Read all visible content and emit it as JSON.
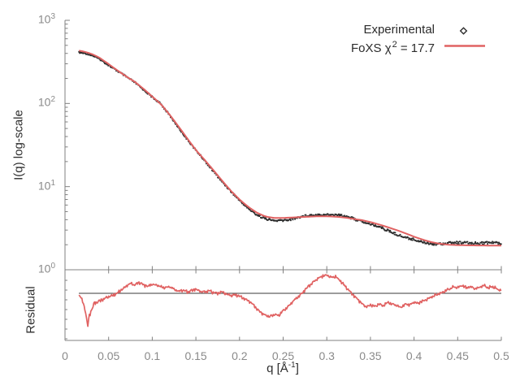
{
  "colors": {
    "experimental": "#2d2d2d",
    "model": "#e06262",
    "axis": "#808080",
    "tick_label": "#8a8a8a",
    "text": "#2e2e2e",
    "residual_ref_line": "#3a3a3a",
    "background": "#ffffff"
  },
  "legend": {
    "entries": [
      {
        "label": "Experimental",
        "marker": "point"
      },
      {
        "label_prefix": "FoXS χ",
        "label_sup": "2",
        "label_suffix": " = 17.7",
        "marker": "line"
      }
    ]
  },
  "chart_data": [
    {
      "type": "scatter",
      "title": "",
      "xlabel_prefix": "q [Å",
      "xlabel_sup": "-1",
      "xlabel_suffix": "]",
      "ylabel": "I(q) log-scale",
      "yscale": "log",
      "xlim": [
        0,
        0.5
      ],
      "ylim": [
        1,
        1000
      ],
      "grid": false,
      "legend_position": "top-right",
      "xtick_values": [
        0,
        0.05,
        0.1,
        0.15,
        0.2,
        0.25,
        0.3,
        0.35,
        0.4,
        0.45,
        0.5
      ],
      "xtick_labels": [
        "0",
        "0.05",
        "0.1",
        "0.15",
        "0.2",
        "0.25",
        "0.3",
        "0.35",
        "0.4",
        "0.45",
        "0.5"
      ],
      "ytick_values": [
        1,
        10,
        100,
        1000
      ],
      "ytick_labels": [
        {
          "base": "10",
          "exp": "0"
        },
        {
          "base": "10",
          "exp": "1"
        },
        {
          "base": "10",
          "exp": "2"
        },
        {
          "base": "10",
          "exp": "3"
        }
      ],
      "series": [
        {
          "name": "Experimental",
          "type": "scatter",
          "color": "#2d2d2d",
          "q": [
            0.017,
            0.02,
            0.025,
            0.03,
            0.035,
            0.04,
            0.045,
            0.05,
            0.06,
            0.07,
            0.08,
            0.09,
            0.1,
            0.11,
            0.12,
            0.13,
            0.14,
            0.15,
            0.16,
            0.17,
            0.18,
            0.19,
            0.2,
            0.21,
            0.22,
            0.23,
            0.24,
            0.25,
            0.26,
            0.27,
            0.28,
            0.29,
            0.3,
            0.31,
            0.32,
            0.33,
            0.34,
            0.35,
            0.36,
            0.37,
            0.38,
            0.39,
            0.4,
            0.41,
            0.42,
            0.43,
            0.44,
            0.45,
            0.46,
            0.47,
            0.48,
            0.49,
            0.5
          ],
          "I": [
            408,
            400,
            392,
            380,
            362,
            342,
            316,
            291,
            244,
            208,
            180,
            148,
            119,
            97,
            72,
            52,
            37,
            27,
            20.5,
            15.5,
            11.5,
            8.7,
            6.8,
            5.5,
            4.6,
            4.05,
            3.85,
            3.95,
            4.1,
            4.3,
            4.5,
            4.62,
            4.65,
            4.55,
            4.4,
            4.15,
            3.85,
            3.55,
            3.25,
            2.95,
            2.7,
            2.45,
            2.28,
            2.15,
            2.08,
            2.06,
            2.08,
            2.1,
            2.12,
            2.1,
            2.08,
            2.1,
            2.1
          ]
        },
        {
          "name": "FoXS χ² = 17.7",
          "type": "line",
          "color": "#e06262",
          "q": [
            0.017,
            0.02,
            0.025,
            0.03,
            0.035,
            0.04,
            0.045,
            0.05,
            0.06,
            0.07,
            0.08,
            0.09,
            0.1,
            0.11,
            0.12,
            0.13,
            0.14,
            0.15,
            0.16,
            0.17,
            0.18,
            0.19,
            0.2,
            0.21,
            0.22,
            0.23,
            0.24,
            0.25,
            0.26,
            0.27,
            0.28,
            0.29,
            0.3,
            0.31,
            0.32,
            0.33,
            0.34,
            0.35,
            0.36,
            0.37,
            0.38,
            0.39,
            0.4,
            0.41,
            0.42,
            0.43,
            0.44,
            0.45,
            0.46,
            0.47,
            0.48,
            0.49,
            0.5
          ],
          "I": [
            432,
            424,
            412,
            396,
            376,
            352,
            324,
            298,
            250,
            212,
            182,
            150,
            121,
            98,
            73,
            53,
            38,
            27.5,
            21,
            15.8,
            11.8,
            8.9,
            7.0,
            5.7,
            4.85,
            4.35,
            4.2,
            4.2,
            4.25,
            4.3,
            4.35,
            4.4,
            4.4,
            4.35,
            4.25,
            4.1,
            3.95,
            3.75,
            3.5,
            3.25,
            3.0,
            2.75,
            2.5,
            2.3,
            2.15,
            2.05,
            2.0,
            1.98,
            1.97,
            1.96,
            1.96,
            1.95,
            1.95
          ]
        }
      ]
    },
    {
      "type": "line",
      "title": "",
      "ylabel": "Residual",
      "yscale": "log",
      "xlim": [
        0,
        0.5
      ],
      "ref_value": 1,
      "grid": false,
      "series": [
        {
          "name": "Residual",
          "type": "line",
          "color": "#e06262",
          "q": [
            0.017,
            0.02,
            0.023,
            0.026,
            0.028,
            0.031,
            0.034,
            0.04,
            0.045,
            0.05,
            0.055,
            0.06,
            0.065,
            0.07,
            0.075,
            0.08,
            0.085,
            0.09,
            0.095,
            0.1,
            0.105,
            0.11,
            0.115,
            0.12,
            0.125,
            0.13,
            0.135,
            0.14,
            0.145,
            0.15,
            0.155,
            0.16,
            0.165,
            0.17,
            0.175,
            0.18,
            0.185,
            0.19,
            0.195,
            0.2,
            0.205,
            0.21,
            0.215,
            0.22,
            0.225,
            0.23,
            0.235,
            0.24,
            0.245,
            0.25,
            0.255,
            0.26,
            0.265,
            0.27,
            0.275,
            0.28,
            0.285,
            0.29,
            0.295,
            0.3,
            0.305,
            0.31,
            0.315,
            0.32,
            0.325,
            0.33,
            0.335,
            0.34,
            0.345,
            0.35,
            0.355,
            0.36,
            0.365,
            0.37,
            0.375,
            0.38,
            0.385,
            0.39,
            0.395,
            0.4,
            0.405,
            0.41,
            0.415,
            0.42,
            0.425,
            0.43,
            0.435,
            0.44,
            0.445,
            0.45,
            0.455,
            0.46,
            0.465,
            0.47,
            0.475,
            0.48,
            0.485,
            0.49,
            0.495,
            0.5
          ],
          "value": [
            0.97,
            0.9,
            0.8,
            0.62,
            0.74,
            0.8,
            0.87,
            0.9,
            0.93,
            0.95,
            0.97,
            1.0,
            1.05,
            1.1,
            1.15,
            1.12,
            1.17,
            1.13,
            1.1,
            1.14,
            1.12,
            1.1,
            1.08,
            1.1,
            1.06,
            1.03,
            1.05,
            1.02,
            1.04,
            1.06,
            1.03,
            1.02,
            1.04,
            1.01,
            1.0,
            1.02,
            0.99,
            0.97,
            0.98,
            0.96,
            0.93,
            0.9,
            0.86,
            0.8,
            0.76,
            0.73,
            0.72,
            0.74,
            0.73,
            0.78,
            0.82,
            0.88,
            0.93,
            0.98,
            1.05,
            1.12,
            1.18,
            1.24,
            1.28,
            1.3,
            1.25,
            1.27,
            1.2,
            1.12,
            1.05,
            0.98,
            0.92,
            0.87,
            0.82,
            0.85,
            0.83,
            0.86,
            0.84,
            0.88,
            0.86,
            0.84,
            0.82,
            0.86,
            0.85,
            0.88,
            0.87,
            0.9,
            0.92,
            0.95,
            0.98,
            1.0,
            1.03,
            1.06,
            1.1,
            1.08,
            1.12,
            1.08,
            1.1,
            1.06,
            1.09,
            1.12,
            1.08,
            1.1,
            1.06,
            1.04
          ]
        }
      ]
    }
  ]
}
